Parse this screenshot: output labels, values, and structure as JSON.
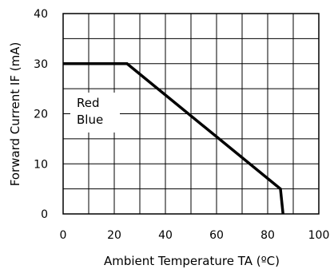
{
  "chart_data": {
    "type": "line",
    "x": [
      0,
      25,
      85,
      86
    ],
    "y": [
      30,
      30,
      5,
      0
    ],
    "xlim": [
      0,
      100
    ],
    "ylim": [
      0,
      40
    ],
    "xticks": [
      "0",
      "20",
      "40",
      "60",
      "80",
      "100"
    ],
    "yticks": [
      "0",
      "10",
      "20",
      "30",
      "40"
    ],
    "xlabel": "Ambient Temperature TA (ºC)",
    "ylabel": "Forward  Current  IF  (mA)",
    "grid": true,
    "annotation": [
      "Red",
      "Blue"
    ],
    "colors": {
      "line": "#000000",
      "grid": "#000000"
    }
  }
}
